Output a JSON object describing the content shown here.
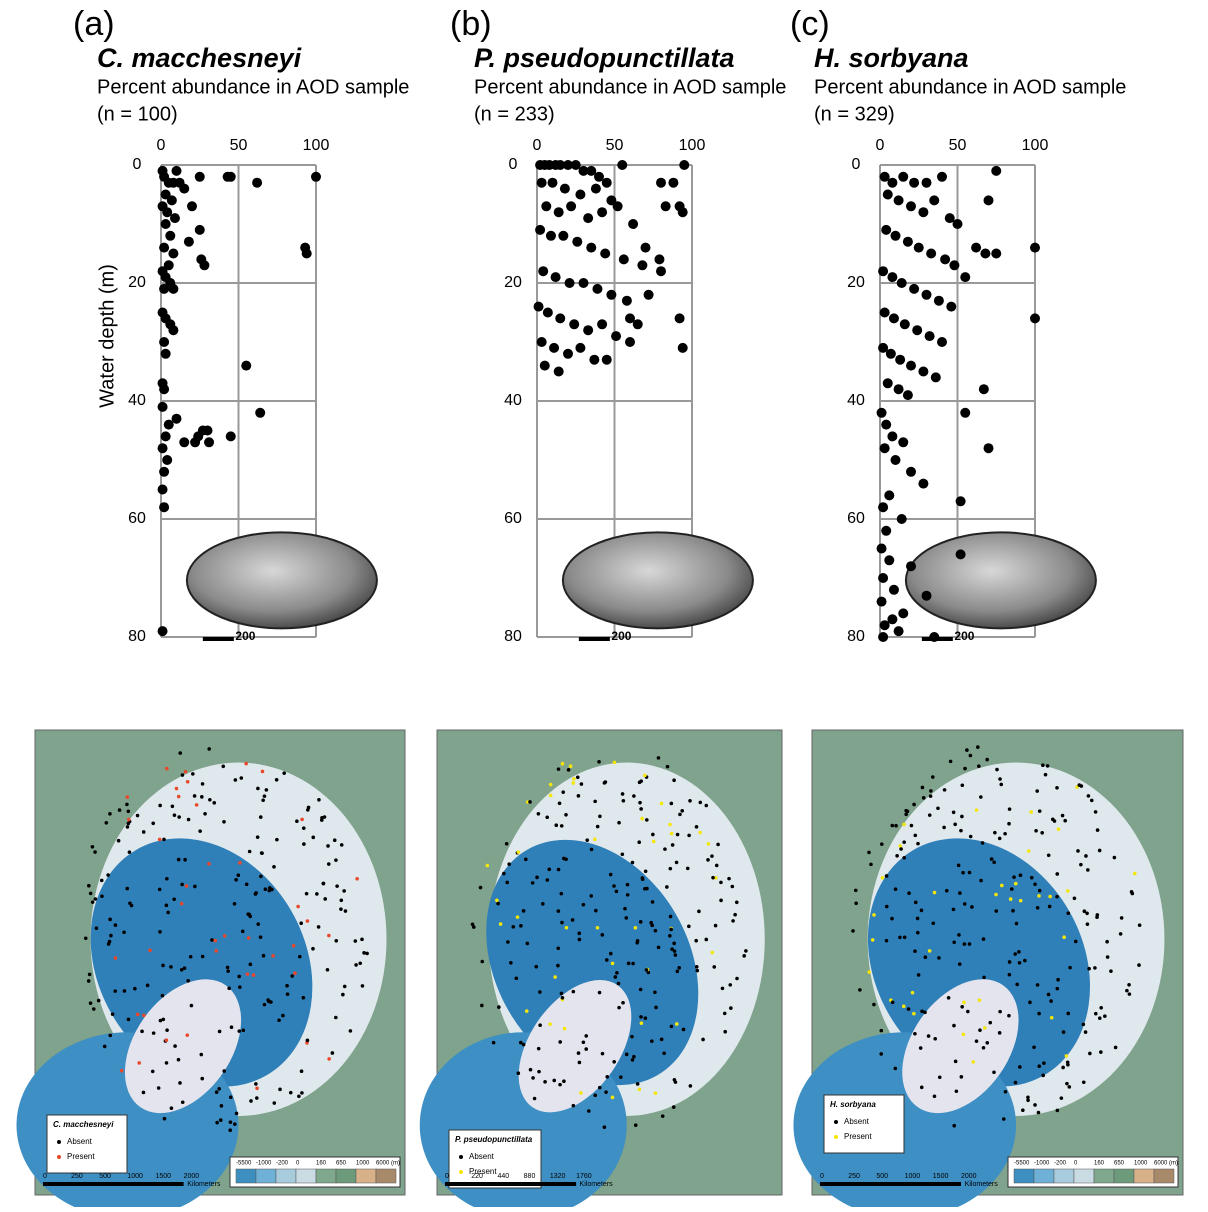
{
  "chart_data": [
    {
      "type": "scatter",
      "panel": "(a)",
      "title": "C. macchesneyi",
      "subtitle": "Percent abundance in AOD sample",
      "n_label": "(n = 100)",
      "ylabel": "Water depth (m)",
      "xlim": [
        0,
        100
      ],
      "xticks": [
        0,
        50,
        100
      ],
      "ylim": [
        0,
        80
      ],
      "y_inverted": true,
      "yticks": [
        0,
        20,
        40,
        60,
        80
      ],
      "grid": true,
      "color": "#000000",
      "scale_bar_label": "200",
      "x": [
        1,
        10,
        2,
        5,
        8,
        12,
        25,
        43,
        45,
        100,
        62,
        15,
        3,
        7,
        1,
        20,
        4,
        9,
        3,
        25,
        6,
        18,
        2,
        8,
        93,
        94,
        26,
        28,
        5,
        1,
        3,
        6,
        2,
        8,
        1,
        3,
        6,
        8,
        2,
        3,
        55,
        1,
        2,
        1,
        64,
        10,
        5,
        27,
        30,
        24,
        45,
        3,
        15,
        22,
        31,
        1,
        4,
        2,
        1,
        2,
        1
      ],
      "values": [
        1,
        1,
        2,
        3,
        3,
        3,
        2,
        2,
        2,
        2,
        3,
        4,
        5,
        6,
        7,
        7,
        8,
        9,
        10,
        11,
        12,
        13,
        14,
        15,
        14,
        15,
        16,
        17,
        17,
        18,
        19,
        20,
        21,
        21,
        25,
        26,
        27,
        28,
        30,
        32,
        34,
        37,
        38,
        41,
        42,
        43,
        44,
        45,
        45,
        46,
        46,
        46,
        47,
        47,
        47,
        48,
        50,
        52,
        55,
        58,
        79
      ]
    },
    {
      "type": "scatter",
      "panel": "(b)",
      "title": "P. pseudopunctillata",
      "subtitle": "Percent abundance in AOD sample",
      "n_label": "(n = 233)",
      "xlim": [
        0,
        100
      ],
      "xticks": [
        0,
        50,
        100
      ],
      "ylim": [
        0,
        80
      ],
      "y_inverted": true,
      "yticks": [
        0,
        20,
        40,
        60,
        80
      ],
      "grid": true,
      "color": "#000000",
      "scale_bar_label": "200",
      "x": [
        95,
        88,
        80,
        92,
        94,
        83,
        70,
        79,
        80,
        92,
        94,
        60,
        65,
        45,
        60,
        2,
        5,
        8,
        12,
        15,
        20,
        25,
        30,
        35,
        40,
        55,
        3,
        10,
        18,
        28,
        38,
        45,
        48,
        6,
        14,
        22,
        33,
        42,
        52,
        62,
        2,
        9,
        17,
        26,
        35,
        44,
        56,
        68,
        4,
        12,
        21,
        30,
        39,
        48,
        58,
        72,
        1,
        7,
        15,
        24,
        33,
        42,
        51,
        3,
        11,
        20,
        28,
        37,
        5,
        14
      ],
      "values": [
        0,
        3,
        3,
        7,
        8,
        7,
        14,
        16,
        18,
        26,
        31,
        26,
        27,
        33,
        30,
        0,
        0,
        0,
        0,
        0,
        0,
        0,
        1,
        1,
        2,
        0,
        3,
        3,
        4,
        5,
        4,
        3,
        6,
        7,
        8,
        7,
        9,
        8,
        7,
        10,
        11,
        12,
        12,
        13,
        14,
        15,
        16,
        17,
        18,
        19,
        20,
        20,
        21,
        22,
        23,
        22,
        24,
        25,
        26,
        27,
        28,
        27,
        29,
        30,
        31,
        32,
        31,
        33,
        34,
        35
      ]
    },
    {
      "type": "scatter",
      "panel": "(c)",
      "title": "H. sorbyana",
      "subtitle": "Percent abundance in AOD sample",
      "n_label": "(n = 329)",
      "xlim": [
        0,
        100
      ],
      "xticks": [
        0,
        50,
        100
      ],
      "ylim": [
        0,
        80
      ],
      "y_inverted": true,
      "yticks": [
        0,
        20,
        40,
        60,
        80
      ],
      "grid": true,
      "color": "#000000",
      "scale_bar_label": "200",
      "x": [
        75,
        70,
        100,
        62,
        68,
        75,
        100,
        67,
        70,
        55,
        55,
        52,
        52,
        2,
        3,
        40,
        30,
        22,
        15,
        8,
        5,
        12,
        20,
        28,
        35,
        45,
        50,
        4,
        10,
        18,
        25,
        33,
        42,
        48,
        2,
        8,
        14,
        22,
        30,
        38,
        46,
        3,
        9,
        16,
        24,
        32,
        40,
        2,
        7,
        13,
        20,
        28,
        36,
        5,
        12,
        18,
        1,
        4,
        8,
        15,
        3,
        10,
        20,
        28,
        6,
        2,
        14,
        4,
        1,
        6,
        2,
        9,
        1,
        30,
        15,
        8,
        35,
        3,
        12,
        20
      ],
      "values": [
        1,
        6,
        14,
        14,
        15,
        15,
        26,
        38,
        48,
        19,
        42,
        57,
        66,
        80,
        2,
        2,
        3,
        3,
        2,
        3,
        5,
        6,
        7,
        8,
        6,
        9,
        10,
        11,
        12,
        13,
        14,
        15,
        16,
        17,
        18,
        19,
        20,
        21,
        22,
        23,
        24,
        25,
        26,
        27,
        28,
        29,
        30,
        31,
        32,
        33,
        34,
        35,
        36,
        37,
        38,
        39,
        42,
        44,
        46,
        47,
        48,
        50,
        52,
        54,
        56,
        58,
        60,
        62,
        65,
        67,
        70,
        72,
        74,
        73,
        76,
        77,
        80,
        78,
        79,
        68
      ]
    }
  ],
  "maps": [
    {
      "legend_title": "C. macchesneyi",
      "absent": "Absent",
      "present": "Present",
      "present_color": "#e8482b",
      "km_labels": [
        "0",
        "250",
        "500",
        "1000",
        "1500",
        "2000"
      ],
      "km_unit": "Kilometers",
      "depth_labels": [
        "-5500",
        "-1000",
        "-200",
        "0",
        "160",
        "650",
        "1000",
        "6000 (m)"
      ]
    },
    {
      "legend_title": "P. pseudopunctillata",
      "absent": "Absent",
      "present": "Present",
      "present_color": "#f5e60a",
      "km_labels": [
        "0",
        "220",
        "440",
        "880",
        "1320",
        "1760"
      ],
      "km_unit": "Kilometers"
    },
    {
      "legend_title": "H. sorbyana",
      "absent": "Absent",
      "present": "Present",
      "present_color": "#f5e60a",
      "km_labels": [
        "0",
        "250",
        "500",
        "1000",
        "1500",
        "2000"
      ],
      "km_unit": "Kilometers",
      "depth_labels": [
        "-5500",
        "-1000",
        "-200",
        "0",
        "160",
        "650",
        "1000",
        "6000 (m)"
      ]
    }
  ]
}
